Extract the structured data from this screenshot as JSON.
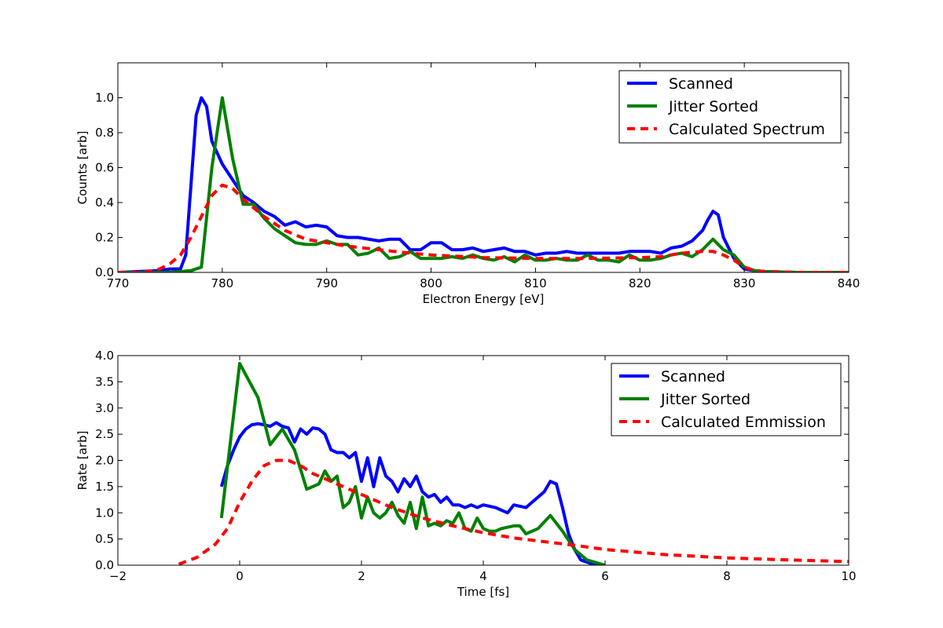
{
  "chart_data": [
    {
      "type": "line",
      "xlabel": "Electron Energy [eV]",
      "ylabel": "Counts [arb]",
      "xlim": [
        770,
        840
      ],
      "ylim": [
        0,
        1.2
      ],
      "xticks": [
        770,
        780,
        790,
        800,
        810,
        820,
        830,
        840
      ],
      "yticks": [
        0,
        0.2,
        0.4,
        0.6,
        0.8,
        1.0
      ],
      "ytick_labels": [
        "0.0",
        "0.2",
        "0.4",
        "0.6",
        "0.8",
        "1.0"
      ],
      "legend_position": "top-right",
      "series": [
        {
          "name": "Scanned",
          "color": "#0000ff",
          "style": "solid",
          "x": [
            770,
            774,
            775,
            776,
            776.5,
            777,
            777.5,
            778,
            778.5,
            779,
            780,
            781,
            782,
            783,
            784,
            785,
            786,
            787,
            788,
            789,
            790,
            791,
            792,
            793,
            794,
            795,
            796,
            797,
            798,
            799,
            800,
            801,
            802,
            803,
            804,
            805,
            806,
            807,
            808,
            809,
            810,
            811,
            812,
            813,
            814,
            815,
            816,
            817,
            818,
            819,
            820,
            821,
            822,
            823,
            824,
            825,
            826,
            826.5,
            827,
            827.5,
            828,
            829,
            830,
            831,
            832,
            835,
            840
          ],
          "y": [
            0,
            0.01,
            0.02,
            0.02,
            0.1,
            0.5,
            0.9,
            1.0,
            0.95,
            0.75,
            0.62,
            0.53,
            0.44,
            0.4,
            0.35,
            0.32,
            0.27,
            0.29,
            0.26,
            0.27,
            0.26,
            0.21,
            0.2,
            0.2,
            0.19,
            0.18,
            0.19,
            0.19,
            0.13,
            0.13,
            0.17,
            0.17,
            0.13,
            0.13,
            0.14,
            0.12,
            0.13,
            0.14,
            0.12,
            0.12,
            0.1,
            0.11,
            0.11,
            0.12,
            0.11,
            0.11,
            0.11,
            0.11,
            0.11,
            0.12,
            0.12,
            0.12,
            0.11,
            0.14,
            0.15,
            0.18,
            0.24,
            0.3,
            0.35,
            0.33,
            0.2,
            0.08,
            0.02,
            0.01,
            0.005,
            0,
            0
          ]
        },
        {
          "name": "Jitter Sorted",
          "color": "#008000",
          "style": "solid",
          "x": [
            770,
            775,
            777,
            778,
            779,
            780,
            781,
            782,
            783,
            784,
            785,
            786,
            787,
            788,
            789,
            790,
            791,
            792,
            793,
            794,
            795,
            796,
            797,
            798,
            799,
            800,
            801,
            802,
            803,
            804,
            805,
            806,
            807,
            808,
            809,
            810,
            811,
            812,
            813,
            814,
            815,
            816,
            817,
            818,
            819,
            820,
            821,
            822,
            823,
            824,
            825,
            826,
            827,
            828,
            829,
            830,
            831,
            832,
            835,
            840
          ],
          "y": [
            0,
            0,
            0.01,
            0.03,
            0.6,
            1.0,
            0.65,
            0.39,
            0.39,
            0.31,
            0.25,
            0.21,
            0.17,
            0.16,
            0.16,
            0.18,
            0.16,
            0.16,
            0.1,
            0.11,
            0.14,
            0.08,
            0.09,
            0.12,
            0.08,
            0.08,
            0.08,
            0.09,
            0.08,
            0.1,
            0.08,
            0.07,
            0.09,
            0.06,
            0.1,
            0.07,
            0.07,
            0.08,
            0.07,
            0.07,
            0.1,
            0.07,
            0.07,
            0.06,
            0.1,
            0.07,
            0.07,
            0.08,
            0.1,
            0.11,
            0.09,
            0.13,
            0.19,
            0.13,
            0.1,
            0.03,
            0.01,
            0.005,
            0,
            0
          ]
        },
        {
          "name": "Calculated Spectrum",
          "color": "#ff0000",
          "style": "dashed",
          "x": [
            770,
            772,
            773,
            774,
            775,
            776,
            777,
            778,
            779,
            780,
            781,
            782,
            783,
            784,
            785,
            786,
            788,
            790,
            792,
            795,
            798,
            800,
            805,
            810,
            815,
            820,
            822,
            824,
            826,
            827,
            828,
            829,
            830,
            831,
            832,
            835,
            840
          ],
          "y": [
            0,
            0,
            0.005,
            0.02,
            0.05,
            0.1,
            0.2,
            0.32,
            0.44,
            0.5,
            0.48,
            0.42,
            0.37,
            0.32,
            0.28,
            0.24,
            0.19,
            0.17,
            0.15,
            0.13,
            0.11,
            0.1,
            0.085,
            0.08,
            0.08,
            0.085,
            0.09,
            0.11,
            0.12,
            0.12,
            0.1,
            0.07,
            0.03,
            0.01,
            0.003,
            0,
            0
          ]
        }
      ]
    },
    {
      "type": "line",
      "xlabel": "Time [fs]",
      "ylabel": "Rate [arb]",
      "xlim": [
        -2,
        10
      ],
      "ylim": [
        0,
        4
      ],
      "xticks": [
        -2,
        0,
        2,
        4,
        6,
        8,
        10
      ],
      "xtick_labels": [
        "−2",
        "0",
        "2",
        "4",
        "6",
        "8",
        "10"
      ],
      "yticks": [
        0,
        0.5,
        1.0,
        1.5,
        2.0,
        2.5,
        3.0,
        3.5,
        4.0
      ],
      "ytick_labels": [
        "0.0",
        "0.5",
        "1.0",
        "1.5",
        "2.0",
        "2.5",
        "3.0",
        "3.5",
        "4.0"
      ],
      "legend_position": "top-right",
      "series": [
        {
          "name": "Scanned",
          "color": "#0000ff",
          "style": "solid",
          "x": [
            -0.3,
            -0.2,
            -0.1,
            0,
            0.1,
            0.2,
            0.3,
            0.4,
            0.5,
            0.6,
            0.7,
            0.8,
            0.9,
            1.0,
            1.1,
            1.2,
            1.3,
            1.4,
            1.5,
            1.6,
            1.7,
            1.8,
            1.9,
            2.0,
            2.1,
            2.2,
            2.3,
            2.4,
            2.5,
            2.6,
            2.7,
            2.8,
            2.9,
            3.0,
            3.1,
            3.2,
            3.3,
            3.4,
            3.5,
            3.6,
            3.7,
            3.8,
            3.9,
            4.0,
            4.2,
            4.4,
            4.5,
            4.7,
            4.8,
            5.0,
            5.1,
            5.2,
            5.3,
            5.4,
            5.5,
            5.6,
            5.8,
            6.0
          ],
          "y": [
            1.5,
            1.9,
            2.2,
            2.45,
            2.6,
            2.68,
            2.7,
            2.68,
            2.65,
            2.72,
            2.65,
            2.62,
            2.35,
            2.6,
            2.5,
            2.62,
            2.6,
            2.5,
            2.2,
            2.15,
            2.15,
            2.05,
            2.15,
            1.6,
            2.05,
            1.5,
            2.05,
            1.7,
            1.6,
            1.4,
            1.65,
            1.5,
            1.7,
            1.4,
            1.3,
            1.35,
            1.2,
            1.3,
            1.15,
            1.15,
            1.1,
            1.15,
            1.1,
            1.15,
            1.1,
            1.0,
            1.15,
            1.1,
            1.2,
            1.4,
            1.6,
            1.55,
            1.1,
            0.6,
            0.3,
            0.1,
            0.02,
            0
          ]
        },
        {
          "name": "Jitter Sorted",
          "color": "#008000",
          "style": "solid",
          "x": [
            -0.3,
            0,
            0.3,
            0.5,
            0.7,
            0.9,
            1.1,
            1.3,
            1.4,
            1.5,
            1.6,
            1.7,
            1.8,
            1.9,
            2.0,
            2.1,
            2.2,
            2.3,
            2.4,
            2.5,
            2.6,
            2.7,
            2.8,
            2.9,
            3.0,
            3.1,
            3.2,
            3.3,
            3.4,
            3.5,
            3.6,
            3.7,
            3.8,
            3.9,
            4.0,
            4.1,
            4.2,
            4.3,
            4.5,
            4.6,
            4.7,
            4.9,
            5.1,
            5.3,
            5.5,
            5.7,
            6.0
          ],
          "y": [
            0.9,
            3.85,
            3.2,
            2.3,
            2.6,
            2.2,
            1.45,
            1.55,
            1.8,
            1.6,
            1.7,
            1.1,
            1.2,
            1.5,
            0.9,
            1.3,
            1.0,
            0.9,
            1.0,
            1.2,
            0.95,
            0.8,
            1.2,
            0.7,
            1.3,
            0.75,
            0.8,
            0.75,
            0.85,
            0.8,
            1.0,
            0.7,
            0.65,
            0.9,
            0.7,
            0.65,
            0.65,
            0.7,
            0.75,
            0.75,
            0.6,
            0.7,
            0.95,
            0.65,
            0.3,
            0.1,
            0
          ]
        },
        {
          "name": "Calculated Emmission",
          "color": "#ff0000",
          "style": "dashed",
          "x": [
            -1.0,
            -0.7,
            -0.4,
            -0.2,
            0,
            0.2,
            0.4,
            0.6,
            0.8,
            1.0,
            1.2,
            1.5,
            2.0,
            2.5,
            3.0,
            3.5,
            4.0,
            4.5,
            5.0,
            5.5,
            6.0,
            7.0,
            8.0,
            9.0,
            10.0
          ],
          "y": [
            0.02,
            0.15,
            0.4,
            0.7,
            1.2,
            1.6,
            1.9,
            2.0,
            2.0,
            1.9,
            1.75,
            1.6,
            1.35,
            1.1,
            0.9,
            0.75,
            0.62,
            0.52,
            0.45,
            0.38,
            0.3,
            0.2,
            0.14,
            0.1,
            0.07
          ]
        }
      ]
    }
  ]
}
